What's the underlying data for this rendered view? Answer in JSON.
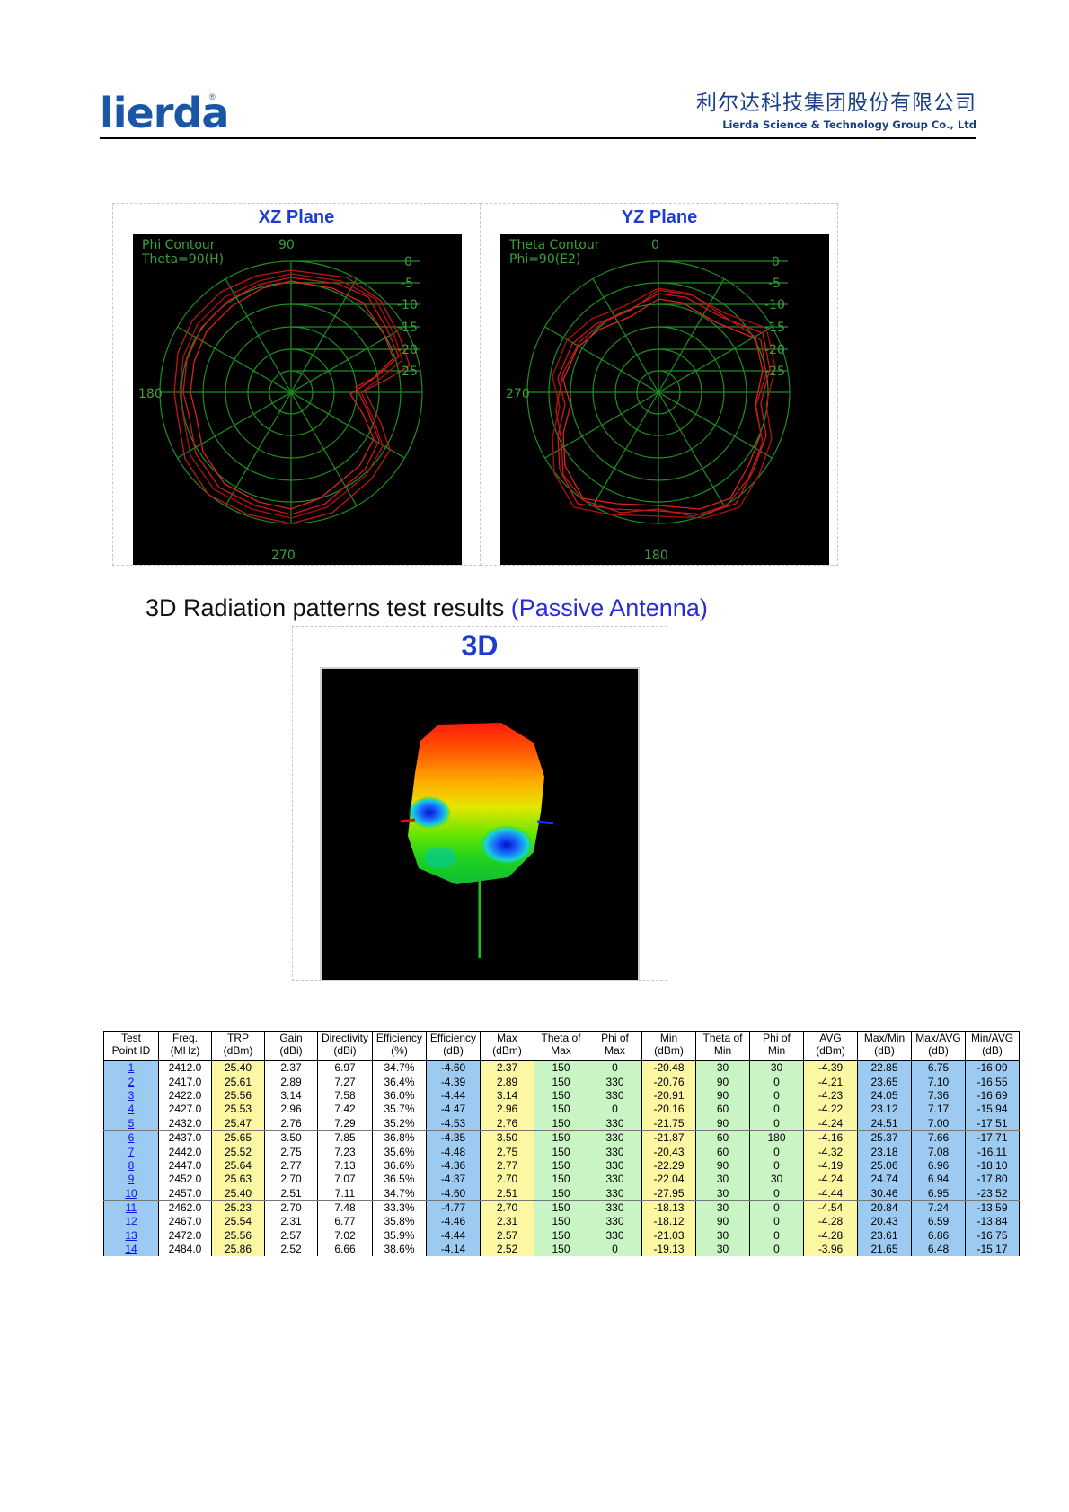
{
  "header": {
    "logo_text": "lierda",
    "logo_mark": "®",
    "company_cn": "利尔达科技集团股份有限公司",
    "company_en": "Lierda Science & Technology Group Co., Ltd"
  },
  "xz_plane": {
    "title": "XZ Plane",
    "legend_line1": "Phi Contour",
    "legend_line2": "Theta=90(H)",
    "angle_top": "90",
    "angle_left": "180",
    "angle_bottom": "270",
    "ring_labels": [
      "0",
      "-5",
      "-10",
      "-15",
      "-20",
      "-25"
    ]
  },
  "yz_plane": {
    "title": "YZ Plane",
    "legend_line1": "Theta Contour",
    "legend_line2": "Phi=90(E2)",
    "angle_top": "0",
    "angle_left": "270",
    "angle_bottom": "180",
    "ring_labels": [
      "0",
      "-5",
      "-10",
      "-15",
      "-20",
      "-25"
    ]
  },
  "section": {
    "title_main": "3D Radiation patterns test results ",
    "title_sub": "(Passive Antenna)"
  },
  "panel_3d": {
    "title": "3D"
  },
  "colors": {
    "accent_blue": "#1e3ccf",
    "col_blue": "#9ccaf0",
    "col_yellow": "#fbf7a3",
    "col_green": "#c9f4c3"
  },
  "table": {
    "headers": [
      [
        "Test",
        "Point ID"
      ],
      [
        "Freq.",
        "(MHz)"
      ],
      [
        "TRP",
        "(dBm)"
      ],
      [
        "Gain",
        "(dBi)"
      ],
      [
        "Directivity",
        "(dBi)"
      ],
      [
        "Efficiency",
        "(%)"
      ],
      [
        "Efficiency",
        "(dB)"
      ],
      [
        "Max",
        "(dBm)"
      ],
      [
        "Theta of",
        "Max"
      ],
      [
        "Phi of",
        "Max"
      ],
      [
        "Min",
        "(dBm)"
      ],
      [
        "Theta of",
        "Min"
      ],
      [
        "Phi of",
        "Min"
      ],
      [
        "AVG",
        "(dBm)"
      ],
      [
        "Max/Min",
        "(dB)"
      ],
      [
        "Max/AVG",
        "(dB)"
      ],
      [
        "Min/AVG",
        "(dB)"
      ]
    ],
    "rows": [
      [
        "1",
        "2412.0",
        "25.40",
        "2.37",
        "6.97",
        "34.7%",
        "-4.60",
        "2.37",
        "150",
        "0",
        "-20.48",
        "30",
        "30",
        "-4.39",
        "22.85",
        "6.75",
        "-16.09"
      ],
      [
        "2",
        "2417.0",
        "25.61",
        "2.89",
        "7.27",
        "36.4%",
        "-4.39",
        "2.89",
        "150",
        "330",
        "-20.76",
        "90",
        "0",
        "-4.21",
        "23.65",
        "7.10",
        "-16.55"
      ],
      [
        "3",
        "2422.0",
        "25.56",
        "3.14",
        "7.58",
        "36.0%",
        "-4.44",
        "3.14",
        "150",
        "330",
        "-20.91",
        "90",
        "0",
        "-4.23",
        "24.05",
        "7.36",
        "-16.69"
      ],
      [
        "4",
        "2427.0",
        "25.53",
        "2.96",
        "7.42",
        "35.7%",
        "-4.47",
        "2.96",
        "150",
        "0",
        "-20.16",
        "60",
        "0",
        "-4.22",
        "23.12",
        "7.17",
        "-15.94"
      ],
      [
        "5",
        "2432.0",
        "25.47",
        "2.76",
        "7.29",
        "35.2%",
        "-4.53",
        "2.76",
        "150",
        "330",
        "-21.75",
        "90",
        "0",
        "-4.24",
        "24.51",
        "7.00",
        "-17.51"
      ],
      [
        "6",
        "2437.0",
        "25.65",
        "3.50",
        "7.85",
        "36.8%",
        "-4.35",
        "3.50",
        "150",
        "330",
        "-21.87",
        "60",
        "180",
        "-4.16",
        "25.37",
        "7.66",
        "-17.71"
      ],
      [
        "7",
        "2442.0",
        "25.52",
        "2.75",
        "7.23",
        "35.6%",
        "-4.48",
        "2.75",
        "150",
        "330",
        "-20.43",
        "60",
        "0",
        "-4.32",
        "23.18",
        "7.08",
        "-16.11"
      ],
      [
        "8",
        "2447.0",
        "25.64",
        "2.77",
        "7.13",
        "36.6%",
        "-4.36",
        "2.77",
        "150",
        "330",
        "-22.29",
        "90",
        "0",
        "-4.19",
        "25.06",
        "6.96",
        "-18.10"
      ],
      [
        "9",
        "2452.0",
        "25.63",
        "2.70",
        "7.07",
        "36.5%",
        "-4.37",
        "2.70",
        "150",
        "330",
        "-22.04",
        "30",
        "30",
        "-4.24",
        "24.74",
        "6.94",
        "-17.80"
      ],
      [
        "10",
        "2457.0",
        "25.40",
        "2.51",
        "7.11",
        "34.7%",
        "-4.60",
        "2.51",
        "150",
        "330",
        "-27.95",
        "30",
        "0",
        "-4.44",
        "30.46",
        "6.95",
        "-23.52"
      ],
      [
        "11",
        "2462.0",
        "25.23",
        "2.70",
        "7.48",
        "33.3%",
        "-4.77",
        "2.70",
        "150",
        "330",
        "-18.13",
        "30",
        "0",
        "-4.54",
        "20.84",
        "7.24",
        "-13.59"
      ],
      [
        "12",
        "2467.0",
        "25.54",
        "2.31",
        "6.77",
        "35.8%",
        "-4.46",
        "2.31",
        "150",
        "330",
        "-18.12",
        "90",
        "0",
        "-4.28",
        "20.43",
        "6.59",
        "-13.84"
      ],
      [
        "13",
        "2472.0",
        "25.56",
        "2.57",
        "7.02",
        "35.9%",
        "-4.44",
        "2.57",
        "150",
        "330",
        "-21.03",
        "30",
        "0",
        "-4.28",
        "23.61",
        "6.86",
        "-16.75"
      ],
      [
        "14",
        "2484.0",
        "25.86",
        "2.52",
        "6.66",
        "38.6%",
        "-4.14",
        "2.52",
        "150",
        "0",
        "-19.13",
        "30",
        "0",
        "-3.96",
        "21.65",
        "6.48",
        "-15.17"
      ]
    ]
  }
}
